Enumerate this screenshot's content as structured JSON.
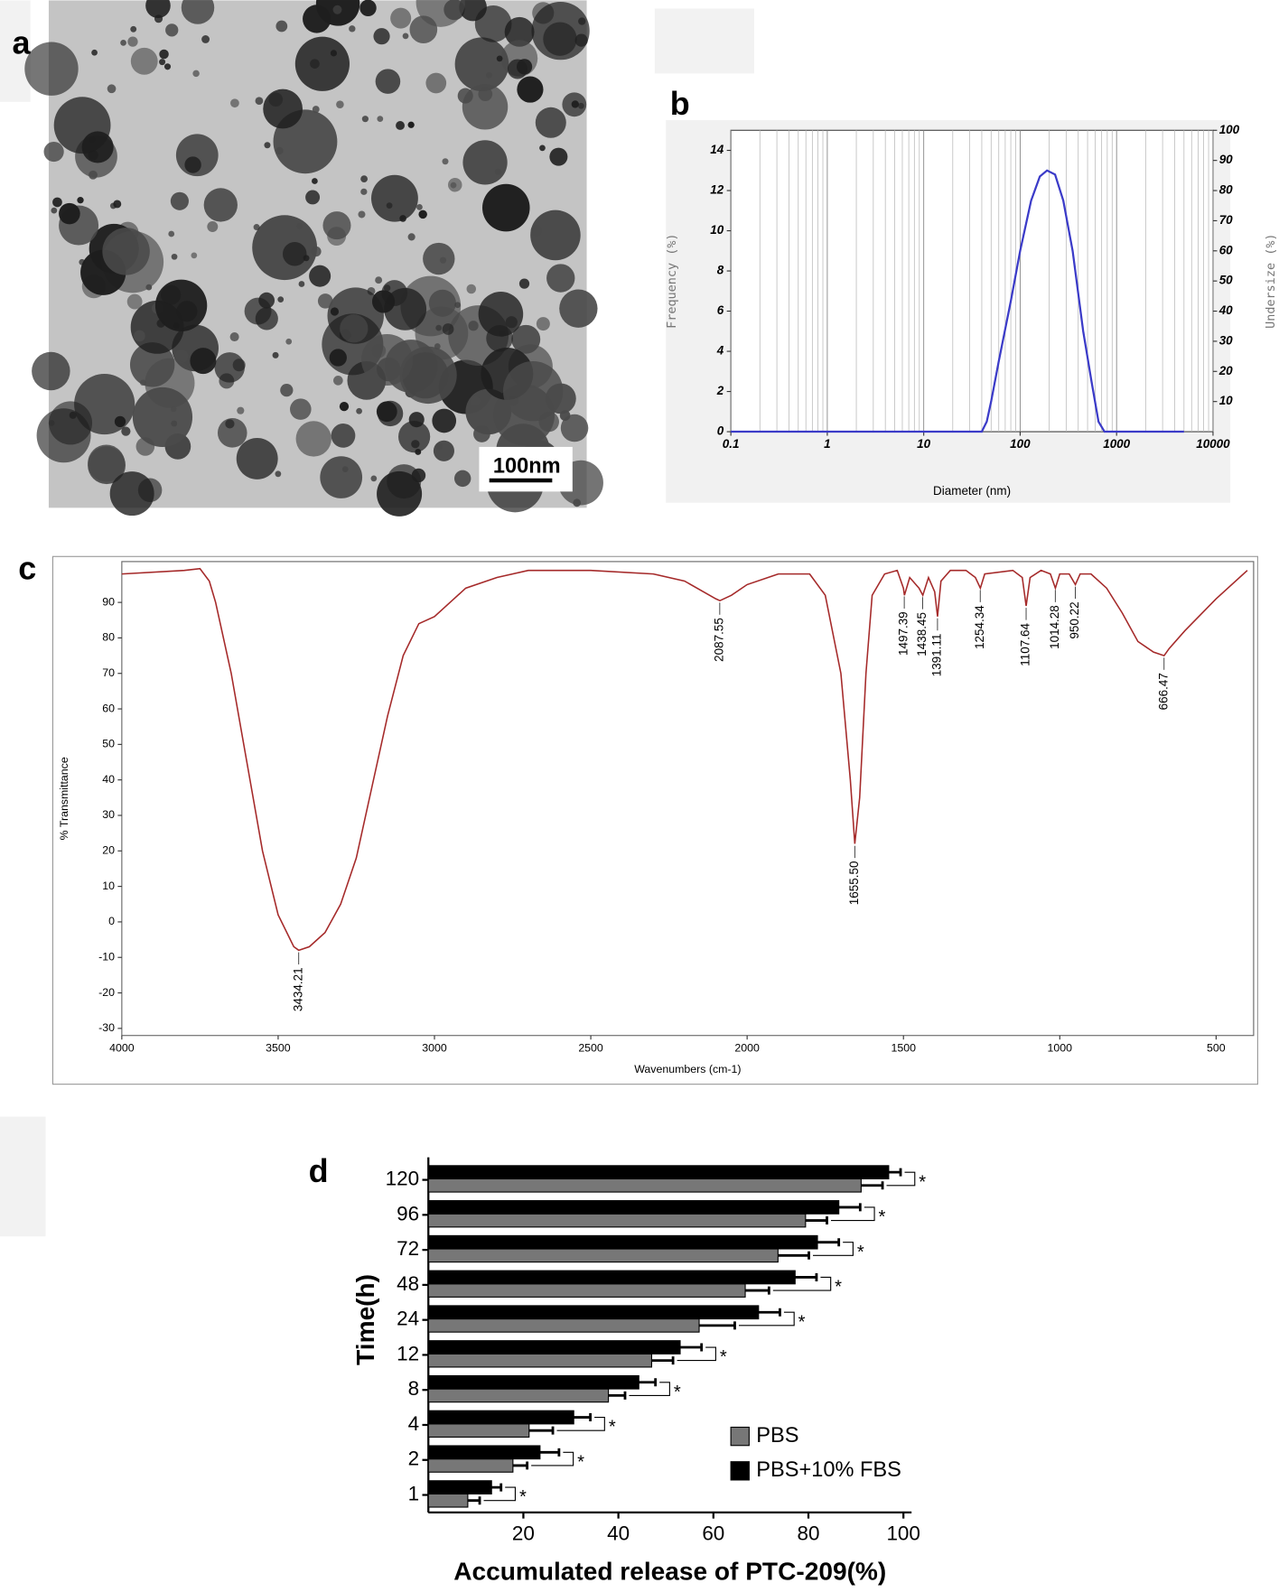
{
  "panel_labels": [
    "a",
    "b",
    "c",
    "d"
  ],
  "image": {
    "scale_bar": "100nm"
  },
  "chart_data": [
    {
      "type": "line",
      "x_label": "Diameter (nm)",
      "y_label": "Frequency (%)",
      "y2_label": "Undersize (%)",
      "x_scale": "log",
      "xlim": [
        0.1,
        10000
      ],
      "xticks": [
        0.1,
        1,
        10,
        100,
        1000,
        10000
      ],
      "ylim": [
        0,
        15
      ],
      "yticks": [
        0,
        2,
        4,
        6,
        8,
        10,
        12,
        14
      ],
      "y2lim": [
        0,
        100
      ],
      "y2ticks": [
        10,
        20,
        30,
        40,
        50,
        60,
        70,
        80,
        90,
        100
      ],
      "grid": "x",
      "color": "#3b3bc8",
      "x": [
        0.1,
        1,
        10,
        30,
        40,
        45,
        50,
        60,
        80,
        100,
        130,
        160,
        190,
        230,
        280,
        350,
        450,
        550,
        650,
        750,
        1000,
        5000
      ],
      "values": [
        0,
        0,
        0,
        0,
        0,
        0.5,
        1.5,
        3.5,
        6.5,
        9,
        11.5,
        12.7,
        13,
        12.8,
        11.5,
        9,
        5,
        2.5,
        0.5,
        0,
        0,
        0
      ]
    },
    {
      "type": "line",
      "x_label": "Wavenumbers (cm-1)",
      "y_label": "% Transmittance",
      "xlim": [
        4000,
        380
      ],
      "xticks": [
        4000,
        3500,
        3000,
        2500,
        2000,
        1500,
        1000,
        500
      ],
      "ylim": [
        -32,
        101.5
      ],
      "yticks": [
        -30,
        -20,
        -10,
        0,
        10,
        20,
        30,
        40,
        50,
        60,
        70,
        80,
        90
      ],
      "color": "#a52a2a",
      "x": [
        4000,
        3800,
        3750,
        3720,
        3700,
        3650,
        3600,
        3550,
        3500,
        3450,
        3434,
        3400,
        3350,
        3300,
        3250,
        3200,
        3150,
        3100,
        3050,
        3000,
        2950,
        2900,
        2800,
        2700,
        2500,
        2300,
        2200,
        2100,
        2087,
        2050,
        2000,
        1900,
        1800,
        1750,
        1700,
        1670,
        1655.5,
        1640,
        1620,
        1600,
        1560,
        1520,
        1500,
        1497,
        1480,
        1450,
        1438,
        1420,
        1400,
        1391,
        1380,
        1350,
        1300,
        1270,
        1254,
        1240,
        1150,
        1120,
        1107.6,
        1095,
        1060,
        1030,
        1014,
        1000,
        970,
        950,
        935,
        900,
        850,
        800,
        750,
        700,
        666.5,
        650,
        600,
        500,
        400
      ],
      "values": [
        98,
        99,
        99.5,
        96,
        90,
        70,
        45,
        20,
        2,
        -7,
        -8,
        -7,
        -3,
        5,
        18,
        38,
        58,
        75,
        84,
        86,
        90,
        94,
        97,
        99,
        99,
        98,
        96,
        91,
        90.5,
        92,
        95,
        98,
        98,
        92,
        70,
        40,
        22,
        35,
        70,
        92,
        98,
        99,
        94,
        92,
        97,
        94,
        92,
        97,
        93,
        86,
        96,
        99,
        99,
        97,
        94,
        98,
        99,
        97,
        89,
        97,
        99,
        98,
        94,
        98,
        98,
        95,
        98,
        98,
        94,
        87,
        79,
        76,
        75,
        77,
        82,
        91,
        99
      ],
      "annotations": [
        {
          "x": 3434.21,
          "label": "3434.21"
        },
        {
          "x": 2087.55,
          "label": "2087.55"
        },
        {
          "x": 1655.5,
          "label": "1655.50"
        },
        {
          "x": 1497.39,
          "label": "1497.39"
        },
        {
          "x": 1438.45,
          "label": "1438.45"
        },
        {
          "x": 1391.11,
          "label": "1391.11"
        },
        {
          "x": 1254.34,
          "label": "1254.34"
        },
        {
          "x": 1107.64,
          "label": "1107.64"
        },
        {
          "x": 1014.28,
          "label": "1014.28"
        },
        {
          "x": 950.22,
          "label": "950.22"
        },
        {
          "x": 666.47,
          "label": "666.47"
        }
      ]
    },
    {
      "type": "bar",
      "orientation": "horizontal",
      "x_label": "Accumulated release of PTC-209(%)",
      "y_label": "Time(h)",
      "categories": [
        "1",
        "2",
        "4",
        "8",
        "12",
        "24",
        "48",
        "72",
        "96",
        "120"
      ],
      "xlim": [
        0,
        100
      ],
      "xticks": [
        20,
        40,
        60,
        80,
        100
      ],
      "legend": "lower right",
      "series": [
        {
          "name": "PBS",
          "color": "#777777",
          "values": [
            8.3,
            17.8,
            21.2,
            37.9,
            47,
            57,
            66.7,
            73.6,
            79.4,
            91.1
          ],
          "errors": [
            2.5,
            3,
            5,
            3.5,
            4.5,
            7.5,
            5,
            6.5,
            4.5,
            4.5
          ]
        },
        {
          "name": "PBS+10% FBS",
          "color": "#000000",
          "values": [
            13.3,
            23.5,
            30.6,
            44.3,
            53,
            69.5,
            77.2,
            81.9,
            86.4,
            96.9
          ],
          "errors": [
            2,
            4,
            3.5,
            3.5,
            4.5,
            4.5,
            4.5,
            4.5,
            4.5,
            2.5
          ]
        }
      ],
      "significance": [
        "*",
        "*",
        "*",
        "*",
        "*",
        "*",
        "*",
        "*",
        "*",
        "*"
      ]
    }
  ]
}
